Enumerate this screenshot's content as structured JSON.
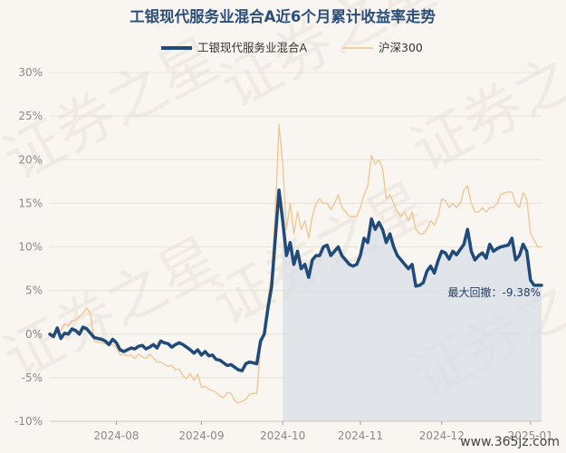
{
  "colors": {
    "fund": "#1f4a7a",
    "index": "#f0c48e",
    "drawdown_fill": "#d8dee6",
    "grid": "#e6e1da",
    "background": "#f9f6f1"
  },
  "watermark": {
    "text": "证券之星",
    "url": "www.365jz.com"
  },
  "chart_data": {
    "type": "line",
    "title": "工银现代服务业混合A近6个月累计收益率走势",
    "xlabel": "",
    "ylabel": "",
    "ylim": [
      -10,
      30
    ],
    "yticks": [
      -10,
      -5,
      0,
      5,
      10,
      15,
      20,
      25,
      30
    ],
    "ytick_labels": [
      "-10%",
      "-5%",
      "0%",
      "5%",
      "10%",
      "15%",
      "20%",
      "25%",
      "30%"
    ],
    "xlim": [
      0,
      133
    ],
    "xticks": [
      18,
      41,
      63,
      84,
      106,
      130
    ],
    "xtick_labels": [
      "2024-08",
      "2024-09",
      "2024-10",
      "2024-11",
      "2024-12",
      "2025-01"
    ],
    "grid": true,
    "legend_position": "top",
    "drawdown": {
      "label": "最大回撤：-9.38%",
      "start_x": 63,
      "end_x": 133
    },
    "series": [
      {
        "name": "工银现代服务业混合A",
        "color": "#1f4a7a",
        "x": [
          0,
          1,
          2,
          3,
          4,
          5,
          6,
          7,
          8,
          9,
          10,
          11,
          12,
          13,
          14,
          15,
          16,
          17,
          18,
          19,
          20,
          21,
          22,
          23,
          24,
          25,
          26,
          27,
          28,
          29,
          30,
          31,
          32,
          33,
          34,
          35,
          36,
          37,
          38,
          39,
          40,
          41,
          42,
          43,
          44,
          45,
          46,
          47,
          48,
          49,
          50,
          51,
          52,
          53,
          54,
          55,
          56,
          57,
          58,
          59,
          60,
          61,
          62,
          63,
          64,
          65,
          66,
          67,
          68,
          69,
          70,
          71,
          72,
          73,
          74,
          75,
          76,
          77,
          78,
          79,
          80,
          81,
          82,
          83,
          84,
          85,
          86,
          87,
          88,
          89,
          90,
          91,
          92,
          93,
          94,
          95,
          96,
          97,
          98,
          99,
          100,
          101,
          102,
          103,
          104,
          105,
          106,
          107,
          108,
          109,
          110,
          111,
          112,
          113,
          114,
          115,
          116,
          117,
          118,
          119,
          120,
          121,
          122,
          123,
          124,
          125,
          126,
          127,
          128,
          129,
          130,
          131,
          132,
          133
        ],
        "values": [
          0.0,
          -0.3,
          0.7,
          -0.5,
          0.1,
          0.0,
          0.6,
          0.4,
          0.0,
          0.8,
          0.6,
          0.1,
          -0.4,
          -0.5,
          -0.6,
          -0.8,
          -1.2,
          -0.6,
          -1.0,
          -1.8,
          -2.0,
          -1.8,
          -1.6,
          -1.7,
          -1.4,
          -1.3,
          -1.7,
          -1.5,
          -1.2,
          -1.6,
          -0.8,
          -1.0,
          -1.1,
          -1.5,
          -1.2,
          -1.0,
          -1.2,
          -1.5,
          -1.8,
          -2.2,
          -1.8,
          -2.4,
          -2.0,
          -2.5,
          -2.4,
          -2.9,
          -3.0,
          -3.3,
          -3.6,
          -3.5,
          -3.8,
          -4.1,
          -4.2,
          -3.4,
          -3.2,
          -3.3,
          -3.4,
          -0.8,
          0.0,
          3.0,
          5.5,
          11.0,
          16.5,
          13.0,
          9.0,
          10.5,
          8.0,
          9.5,
          7.5,
          8.0,
          6.5,
          8.5,
          9.0,
          9.0,
          10.0,
          10.2,
          9.0,
          9.5,
          10.0,
          9.0,
          8.5,
          8.0,
          7.8,
          8.0,
          9.0,
          11.0,
          10.5,
          13.2,
          12.0,
          12.8,
          12.0,
          10.5,
          11.5,
          10.0,
          9.0,
          8.5,
          8.0,
          7.5,
          8.0,
          5.5,
          5.6,
          5.9,
          7.2,
          7.8,
          7.0,
          8.4,
          9.5,
          9.3,
          8.6,
          9.5,
          9.1,
          9.7,
          10.3,
          12.0,
          9.5,
          8.5,
          9.0,
          9.3,
          8.7,
          10.3,
          9.5,
          9.8,
          10.0,
          10.1,
          10.2,
          11.0,
          8.5,
          9.0,
          10.3,
          9.5,
          6.2,
          5.6,
          5.6,
          5.6
        ]
      },
      {
        "name": "沪深300",
        "color": "#f0c48e",
        "x": [
          0,
          1,
          2,
          3,
          4,
          5,
          6,
          7,
          8,
          9,
          10,
          11,
          12,
          13,
          14,
          15,
          16,
          17,
          18,
          19,
          20,
          21,
          22,
          23,
          24,
          25,
          26,
          27,
          28,
          29,
          30,
          31,
          32,
          33,
          34,
          35,
          36,
          37,
          38,
          39,
          40,
          41,
          42,
          43,
          44,
          45,
          46,
          47,
          48,
          49,
          50,
          51,
          52,
          53,
          54,
          55,
          56,
          57,
          58,
          59,
          60,
          61,
          62,
          63,
          64,
          65,
          66,
          67,
          68,
          69,
          70,
          71,
          72,
          73,
          74,
          75,
          76,
          77,
          78,
          79,
          80,
          81,
          82,
          83,
          84,
          85,
          86,
          87,
          88,
          89,
          90,
          91,
          92,
          93,
          94,
          95,
          96,
          97,
          98,
          99,
          100,
          101,
          102,
          103,
          104,
          105,
          106,
          107,
          108,
          109,
          110,
          111,
          112,
          113,
          114,
          115,
          116,
          117,
          118,
          119,
          120,
          121,
          122,
          123,
          124,
          125,
          126,
          127,
          128,
          129,
          130,
          131,
          132,
          133
        ],
        "values": [
          0.2,
          -0.1,
          0.5,
          0.4,
          1.2,
          0.9,
          1.5,
          1.6,
          2.0,
          2.4,
          3.0,
          2.3,
          -0.8,
          -0.9,
          -1.0,
          -1.1,
          -1.3,
          -1.2,
          -1.5,
          -2.4,
          -2.3,
          -2.5,
          -2.4,
          -2.8,
          -2.3,
          -2.6,
          -2.8,
          -2.3,
          -2.7,
          -3.2,
          -3.2,
          -3.5,
          -3.7,
          -3.6,
          -4.1,
          -4.0,
          -4.8,
          -5.1,
          -4.5,
          -5.3,
          -4.6,
          -6.1,
          -6.0,
          -6.3,
          -6.5,
          -6.7,
          -7.1,
          -7.3,
          -6.7,
          -6.8,
          -7.6,
          -7.9,
          -7.7,
          -7.5,
          -6.9,
          -6.8,
          -6.8,
          -1.5,
          0.0,
          4.0,
          7.0,
          14.0,
          24.0,
          19.5,
          12.0,
          15.0,
          11.5,
          14.0,
          12.0,
          13.0,
          11.0,
          13.5,
          15.0,
          15.5,
          15.0,
          15.0,
          14.3,
          15.0,
          16.0,
          14.5,
          14.0,
          13.5,
          13.5,
          13.5,
          14.5,
          16.0,
          17.0,
          20.5,
          19.5,
          20.0,
          19.0,
          15.5,
          16.0,
          15.0,
          14.0,
          13.5,
          14.0,
          13.0,
          14.0,
          12.0,
          11.5,
          11.5,
          12.0,
          13.0,
          12.5,
          13.5,
          15.5,
          15.3,
          14.5,
          15.0,
          14.5,
          15.0,
          16.5,
          17.0,
          15.0,
          14.0,
          14.0,
          14.5,
          14.0,
          14.5,
          14.5,
          15.0,
          16.0,
          16.2,
          16.3,
          16.3,
          15.0,
          14.5,
          16.2,
          15.5,
          11.5,
          10.8,
          10.0,
          10.0
        ]
      }
    ]
  }
}
